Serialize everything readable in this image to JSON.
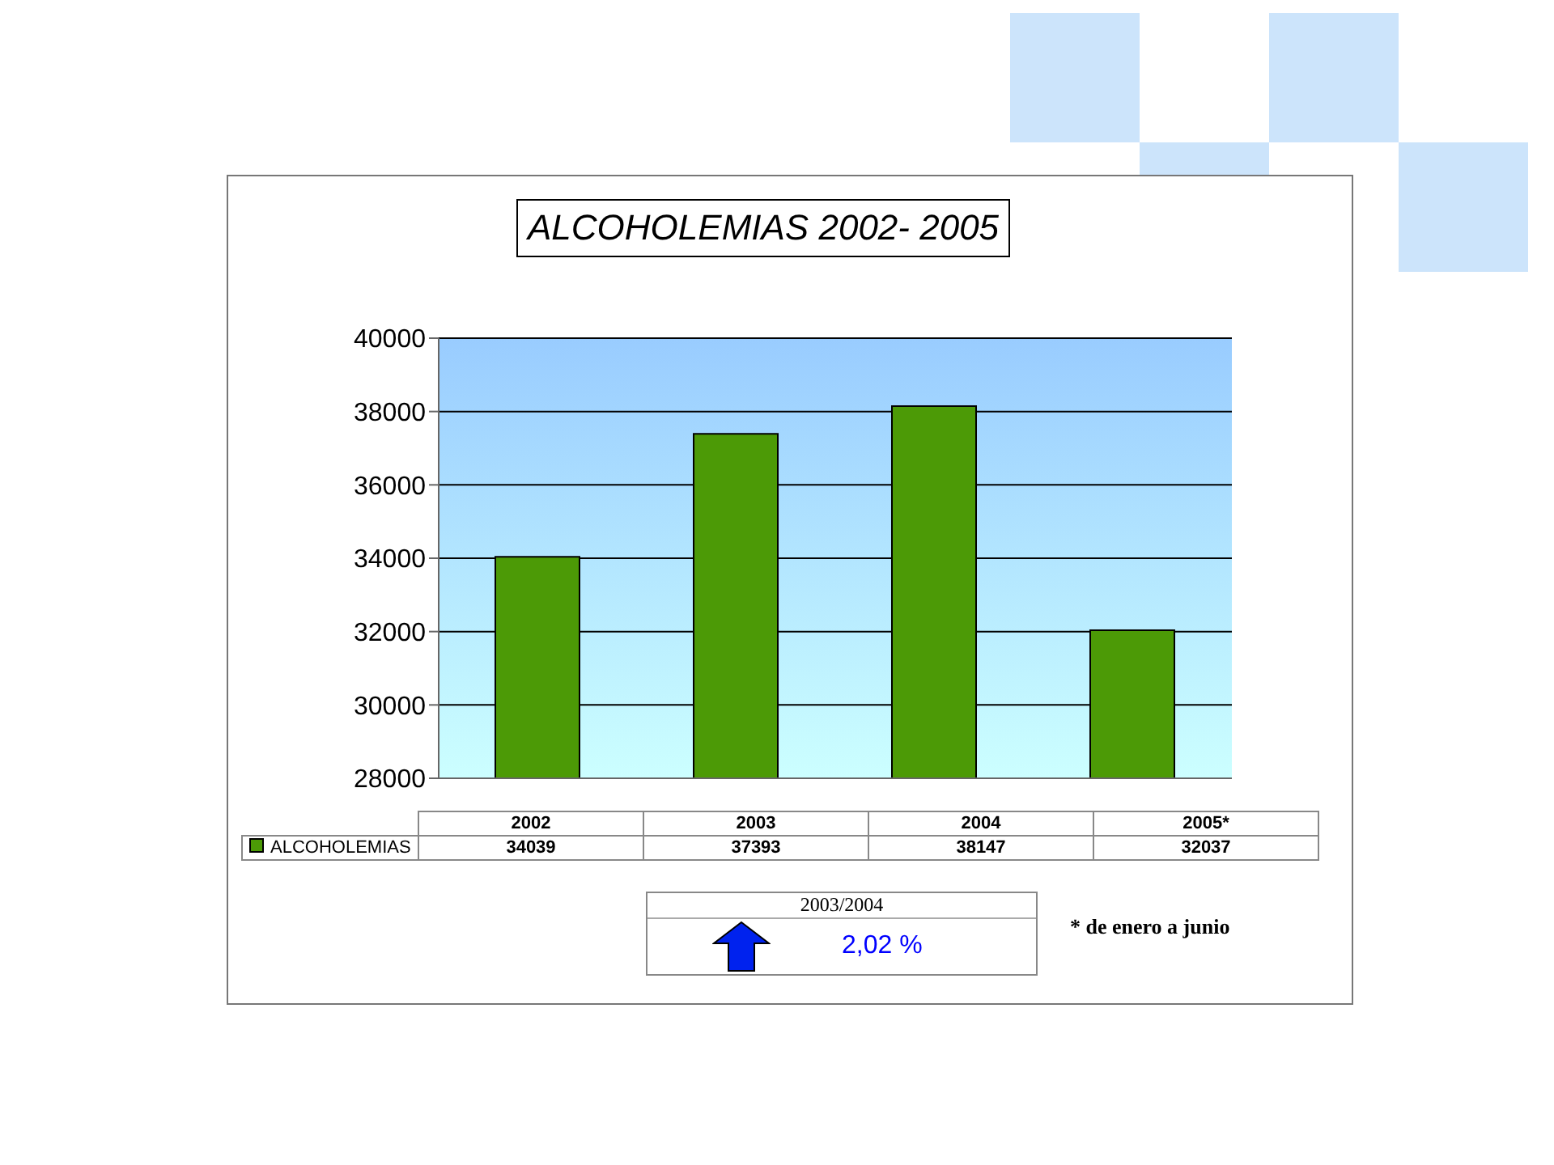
{
  "chart_data": {
    "type": "bar",
    "title": "ALCOHOLEMIAS 2002- 2005",
    "categories": [
      "2002",
      "2003",
      "2004",
      "2005*"
    ],
    "series": [
      {
        "name": "ALCOHOLEMIAS",
        "color": "#4c9a06",
        "values": [
          34039,
          37393,
          38147,
          32037
        ]
      }
    ],
    "ylim": [
      28000,
      40000
    ],
    "yticks": [
      28000,
      30000,
      32000,
      34000,
      36000,
      38000,
      40000
    ],
    "grid": "y",
    "legend": "bottom",
    "data_labels": true,
    "annotations": [
      "2003/2004",
      "2,02 %",
      "* de enero a junio"
    ]
  }
}
